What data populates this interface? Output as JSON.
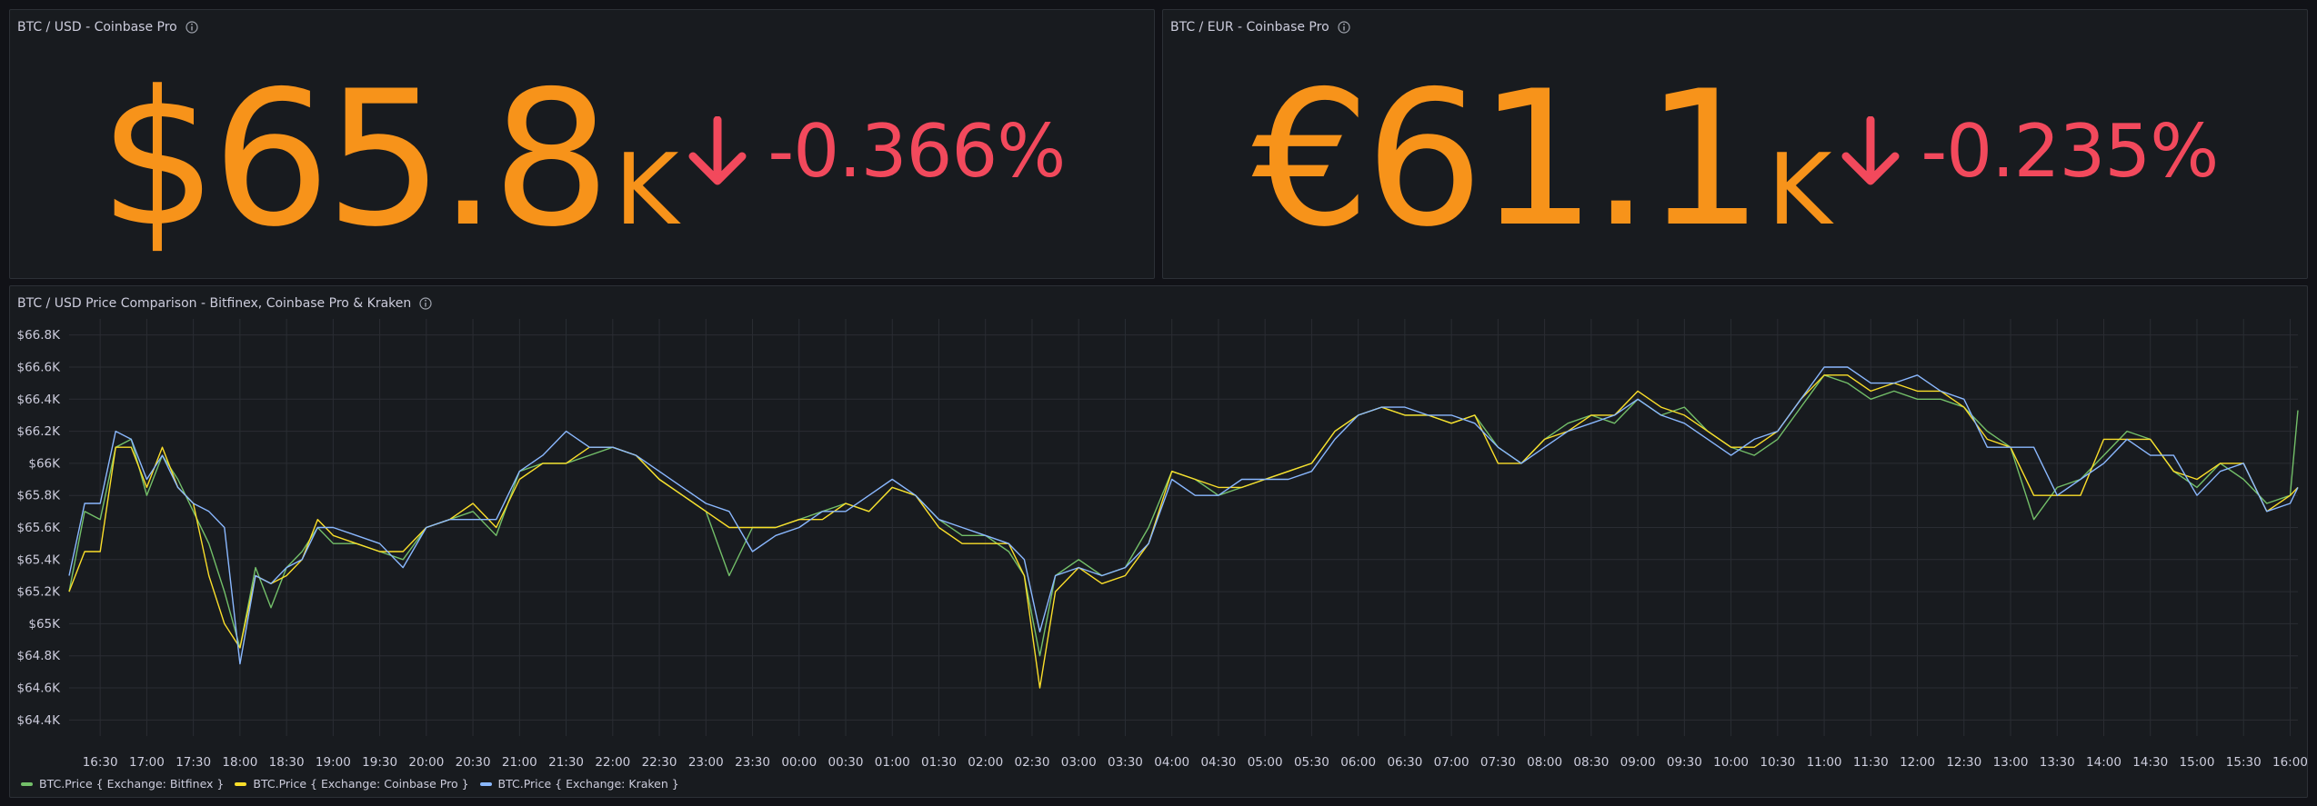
{
  "colors": {
    "background": "#111217",
    "panel": "#181b1f",
    "stat_value": "#f7931a",
    "stat_down": "#f2495c",
    "bitfinex": "#73bf69",
    "coinbase": "#fade2a",
    "kraken": "#8ab8ff"
  },
  "panels": {
    "usd_stat": {
      "title": "BTC / USD - Coinbase Pro",
      "value": "$65.8",
      "unit": "K",
      "change": "-0.366%",
      "trend_icon": "arrow-down-icon"
    },
    "eur_stat": {
      "title": "BTC / EUR - Coinbase Pro",
      "value": "€61.1",
      "unit": "K",
      "change": "-0.235%",
      "trend_icon": "arrow-down-icon"
    },
    "comparison": {
      "title": "BTC / USD Price Comparison - Bitfinex, Coinbase Pro & Kraken"
    }
  },
  "chart_data": {
    "type": "line",
    "title": "BTC / USD Price Comparison - Bitfinex, Coinbase Pro & Kraken",
    "xlabel": "",
    "ylabel": "",
    "ylim": [
      64300,
      66900
    ],
    "grid": true,
    "legend_position": "bottom-left",
    "y_ticks": [
      64400,
      64600,
      64800,
      65000,
      65200,
      65400,
      65600,
      65800,
      66000,
      66200,
      66400,
      66600,
      66800
    ],
    "y_tick_labels": [
      "$64.4K",
      "$64.6K",
      "$64.8K",
      "$65K",
      "$65.2K",
      "$65.4K",
      "$65.6K",
      "$65.8K",
      "$66K",
      "$66.2K",
      "$66.4K",
      "$66.6K",
      "$66.8K"
    ],
    "x_range": [
      "16:10",
      "16:05"
    ],
    "x_ticks": [
      "16:30",
      "17:00",
      "17:30",
      "18:00",
      "18:30",
      "19:00",
      "19:30",
      "20:00",
      "20:30",
      "21:00",
      "21:30",
      "22:00",
      "22:30",
      "23:00",
      "23:30",
      "00:00",
      "00:30",
      "01:00",
      "01:30",
      "02:00",
      "02:30",
      "03:00",
      "03:30",
      "04:00",
      "04:30",
      "05:00",
      "05:30",
      "06:00",
      "06:30",
      "07:00",
      "07:30",
      "08:00",
      "08:30",
      "09:00",
      "09:30",
      "10:00",
      "10:30",
      "11:00",
      "11:30",
      "12:00",
      "12:30",
      "13:00",
      "13:30",
      "14:00",
      "14:30",
      "15:00",
      "15:30",
      "16:00"
    ],
    "x": [
      "16:10",
      "16:20",
      "16:30",
      "16:40",
      "16:50",
      "17:00",
      "17:10",
      "17:20",
      "17:30",
      "17:40",
      "17:50",
      "18:00",
      "18:10",
      "18:20",
      "18:30",
      "18:40",
      "18:50",
      "19:00",
      "19:15",
      "19:30",
      "19:45",
      "20:00",
      "20:15",
      "20:30",
      "20:45",
      "21:00",
      "21:15",
      "21:30",
      "21:45",
      "22:00",
      "22:15",
      "22:30",
      "22:45",
      "23:00",
      "23:15",
      "23:30",
      "23:45",
      "00:00",
      "00:15",
      "00:30",
      "00:45",
      "01:00",
      "01:15",
      "01:30",
      "01:45",
      "02:00",
      "02:15",
      "02:25",
      "02:35",
      "02:45",
      "03:00",
      "03:15",
      "03:30",
      "03:45",
      "04:00",
      "04:15",
      "04:30",
      "04:45",
      "05:00",
      "05:15",
      "05:30",
      "05:45",
      "06:00",
      "06:15",
      "06:30",
      "06:45",
      "07:00",
      "07:15",
      "07:30",
      "07:45",
      "08:00",
      "08:15",
      "08:30",
      "08:45",
      "09:00",
      "09:15",
      "09:30",
      "09:45",
      "10:00",
      "10:15",
      "10:30",
      "10:45",
      "11:00",
      "11:15",
      "11:30",
      "11:45",
      "12:00",
      "12:15",
      "12:30",
      "12:45",
      "13:00",
      "13:15",
      "13:30",
      "13:45",
      "14:00",
      "14:15",
      "14:30",
      "14:45",
      "15:00",
      "15:15",
      "15:30",
      "15:45",
      "16:00",
      "16:05"
    ],
    "series": [
      {
        "name": "BTC.Price { Exchange: Bitfinex }",
        "values": [
          65200,
          65700,
          65650,
          66100,
          66150,
          65800,
          66050,
          65900,
          65700,
          65500,
          65200,
          64850,
          65350,
          65100,
          65350,
          65450,
          65600,
          65500,
          65500,
          65450,
          65400,
          65600,
          65650,
          65700,
          65550,
          65950,
          66000,
          66000,
          66050,
          66100,
          66050,
          65900,
          65800,
          65700,
          65300,
          65600,
          65600,
          65650,
          65700,
          65750,
          65700,
          65850,
          65800,
          65650,
          65550,
          65550,
          65450,
          65300,
          64800,
          65300,
          65400,
          65300,
          65350,
          65600,
          65950,
          65900,
          65800,
          65850,
          65900,
          65950,
          66000,
          66200,
          66300,
          66350,
          66300,
          66300,
          66250,
          66300,
          66100,
          66000,
          66150,
          66250,
          66300,
          66250,
          66400,
          66300,
          66350,
          66200,
          66100,
          66050,
          66150,
          66350,
          66550,
          66500,
          66400,
          66450,
          66400,
          66400,
          66350,
          66200,
          66100,
          65650,
          65850,
          65900,
          66050,
          66200,
          66150,
          65950,
          65850,
          66000,
          65900,
          65750,
          65800,
          66330
        ]
      },
      {
        "name": "BTC.Price { Exchange: Coinbase Pro }",
        "values": [
          65200,
          65450,
          65450,
          66100,
          66100,
          65850,
          66100,
          65850,
          65750,
          65300,
          65000,
          64850,
          65300,
          65250,
          65300,
          65400,
          65650,
          65550,
          65500,
          65450,
          65450,
          65600,
          65650,
          65750,
          65600,
          65900,
          66000,
          66000,
          66100,
          66100,
          66050,
          65900,
          65800,
          65700,
          65600,
          65600,
          65600,
          65650,
          65650,
          65750,
          65700,
          65850,
          65800,
          65600,
          65500,
          65500,
          65500,
          65300,
          64600,
          65200,
          65350,
          65250,
          65300,
          65500,
          65950,
          65900,
          65850,
          65850,
          65900,
          65950,
          66000,
          66200,
          66300,
          66350,
          66300,
          66300,
          66250,
          66300,
          66000,
          66000,
          66150,
          66200,
          66300,
          66300,
          66450,
          66350,
          66300,
          66200,
          66100,
          66100,
          66200,
          66400,
          66550,
          66550,
          66450,
          66500,
          66450,
          66450,
          66350,
          66150,
          66100,
          65800,
          65800,
          65800,
          66150,
          66150,
          66150,
          65950,
          65900,
          66000,
          66000,
          65700,
          65800,
          65850
        ]
      },
      {
        "name": "BTC.Price { Exchange: Kraken }",
        "values": [
          65300,
          65750,
          65750,
          66200,
          66150,
          65900,
          66050,
          65850,
          65750,
          65700,
          65600,
          64750,
          65300,
          65250,
          65350,
          65400,
          65600,
          65600,
          65550,
          65500,
          65350,
          65600,
          65650,
          65650,
          65650,
          65950,
          66050,
          66200,
          66100,
          66100,
          66050,
          65950,
          65850,
          65750,
          65700,
          65450,
          65550,
          65600,
          65700,
          65700,
          65800,
          65900,
          65800,
          65650,
          65600,
          65550,
          65500,
          65400,
          64950,
          65300,
          65350,
          65300,
          65350,
          65500,
          65900,
          65800,
          65800,
          65900,
          65900,
          65900,
          65950,
          66150,
          66300,
          66350,
          66350,
          66300,
          66300,
          66250,
          66100,
          66000,
          66100,
          66200,
          66250,
          66300,
          66400,
          66300,
          66250,
          66150,
          66050,
          66150,
          66200,
          66400,
          66600,
          66600,
          66500,
          66500,
          66550,
          66450,
          66400,
          66100,
          66100,
          66100,
          65800,
          65900,
          66000,
          66150,
          66050,
          66050,
          65800,
          65950,
          66000,
          65700,
          65750,
          65850
        ]
      }
    ]
  }
}
